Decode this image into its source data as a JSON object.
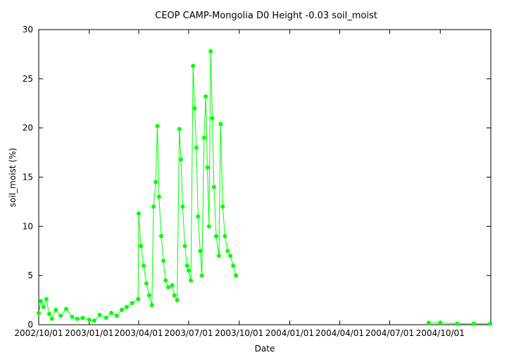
{
  "chart_data": {
    "type": "scatter",
    "title": "CEOP CAMP-Mongolia D0 Height -0.03 soil_moist",
    "xlabel": "Date",
    "ylabel": "soil_moist (%)",
    "xlim": [
      "2002/10/01",
      "2005/01/01"
    ],
    "ylim": [
      0,
      30
    ],
    "grid": false,
    "legend": "none",
    "x_ticks": [
      "2002/10/01",
      "2003/01/01",
      "2003/04/01",
      "2003/07/01",
      "2003/10/01",
      "2004/01/01",
      "2004/04/01",
      "2004/07/01",
      "2004/10/01"
    ],
    "y_ticks": [
      "0",
      "5",
      "10",
      "15",
      "20",
      "25",
      "30"
    ],
    "series": [
      {
        "color": "#00ff00",
        "points": [
          [
            "2002/10/01",
            1.2
          ],
          [
            "2002/10/05",
            2.4
          ],
          [
            "2002/10/10",
            1.8
          ],
          [
            "2002/10/15",
            2.6
          ],
          [
            "2002/10/20",
            1.1
          ],
          [
            "2002/10/25",
            0.6
          ],
          [
            "2002/11/01",
            1.5
          ],
          [
            "2002/11/10",
            0.9
          ],
          [
            "2002/11/20",
            1.6
          ],
          [
            "2002/12/01",
            0.8
          ],
          [
            "2002/12/10",
            0.6
          ],
          [
            "2002/12/20",
            0.7
          ],
          [
            "2003/01/01",
            0.5
          ],
          [
            "2003/01/10",
            0.4
          ],
          [
            "2003/01/20",
            1.0
          ],
          [
            "2003/02/01",
            0.7
          ],
          [
            "2003/02/10",
            1.2
          ],
          [
            "2003/02/20",
            0.9
          ],
          [
            "2003/03/01",
            1.5
          ],
          [
            "2003/03/10",
            1.8
          ],
          [
            "2003/03/20",
            2.2
          ],
          [
            "2003/03/31",
            2.6
          ],
          [
            "2003/04/01",
            11.3
          ],
          [
            "2003/04/05",
            8.0
          ],
          [
            "2003/04/10",
            6.0
          ],
          [
            "2003/04/15",
            4.2
          ],
          [
            "2003/04/20",
            3.0
          ],
          [
            "2003/04/25",
            2.0
          ],
          [
            "2003/04/28",
            12.0
          ],
          [
            "2003/05/02",
            14.5
          ],
          [
            "2003/05/05",
            20.2
          ],
          [
            "2003/05/08",
            13.0
          ],
          [
            "2003/05/12",
            9.0
          ],
          [
            "2003/05/16",
            6.5
          ],
          [
            "2003/05/20",
            4.5
          ],
          [
            "2003/05/25",
            3.8
          ],
          [
            "2003/06/01",
            4.0
          ],
          [
            "2003/06/05",
            3.0
          ],
          [
            "2003/06/10",
            2.5
          ],
          [
            "2003/06/14",
            19.9
          ],
          [
            "2003/06/17",
            16.8
          ],
          [
            "2003/06/20",
            12.0
          ],
          [
            "2003/06/24",
            8.0
          ],
          [
            "2003/06/28",
            6.0
          ],
          [
            "2003/07/01",
            5.5
          ],
          [
            "2003/07/05",
            4.5
          ],
          [
            "2003/07/09",
            26.3
          ],
          [
            "2003/07/12",
            22.0
          ],
          [
            "2003/07/15",
            18.0
          ],
          [
            "2003/07/18",
            11.0
          ],
          [
            "2003/07/22",
            7.5
          ],
          [
            "2003/07/25",
            5.0
          ],
          [
            "2003/07/29",
            19.0
          ],
          [
            "2003/08/01",
            23.2
          ],
          [
            "2003/08/04",
            16.0
          ],
          [
            "2003/08/07",
            10.0
          ],
          [
            "2003/08/10",
            27.8
          ],
          [
            "2003/08/13",
            21.0
          ],
          [
            "2003/08/16",
            14.0
          ],
          [
            "2003/08/20",
            9.0
          ],
          [
            "2003/08/25",
            7.0
          ],
          [
            "2003/08/28",
            20.4
          ],
          [
            "2003/09/01",
            12.0
          ],
          [
            "2003/09/05",
            9.0
          ],
          [
            "2003/09/10",
            7.5
          ],
          [
            "2003/09/15",
            7.0
          ],
          [
            "2003/09/20",
            6.0
          ],
          [
            "2003/09/25",
            5.0
          ],
          [
            "2004/09/10",
            0.2
          ],
          [
            "2004/10/01",
            0.2
          ],
          [
            "2004/11/01",
            0.1
          ],
          [
            "2004/12/01",
            0.1
          ],
          [
            "2004/12/31",
            0.1
          ]
        ]
      }
    ]
  }
}
